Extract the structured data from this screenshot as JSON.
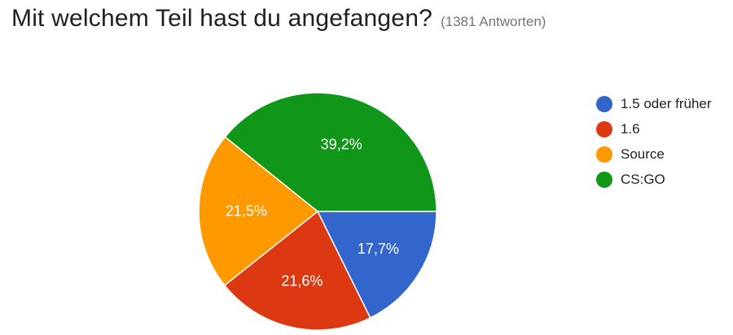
{
  "header": {
    "title": "Mit welchem Teil hast du angefangen?",
    "subtitle": "(1381 Antworten)"
  },
  "chart_data": {
    "type": "pie",
    "title": "Mit welchem Teil hast du angefangen?",
    "subtitle": "(1381 Antworten)",
    "categories": [
      "1.5 oder früher",
      "1.6",
      "Source",
      "CS:GO"
    ],
    "values": [
      17.7,
      21.6,
      21.5,
      39.2
    ],
    "data_labels": [
      "17,7%",
      "21,6%",
      "21,5%",
      "39,2%"
    ],
    "colors": [
      "#3366cc",
      "#dc3912",
      "#ff9900",
      "#109618"
    ],
    "legend_position": "right",
    "start_angle_deg": 0,
    "direction": "clockwise"
  }
}
